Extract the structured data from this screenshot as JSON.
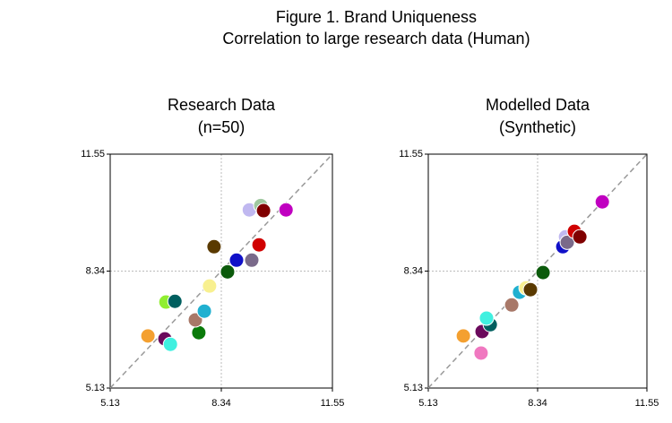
{
  "title": "Figure 1. Brand Uniqueness",
  "subtitle": "Correlation to large research data (Human)",
  "chart_data": [
    {
      "type": "scatter",
      "title": "Research Data",
      "subtitle": "(n=50)",
      "xlim": [
        5.13,
        11.55
      ],
      "ylim": [
        5.13,
        11.55
      ],
      "xticks": [
        5.13,
        8.34,
        11.55
      ],
      "yticks": [
        5.13,
        8.34,
        11.55
      ],
      "grid": true,
      "x": [
        6.22,
        6.71,
        6.87,
        6.74,
        7.0,
        7.69,
        7.59,
        7.85,
        8.0,
        8.52,
        8.13,
        8.78,
        9.22,
        9.43,
        9.15,
        9.48,
        9.56,
        10.21
      ],
      "values": [
        6.56,
        6.48,
        6.33,
        7.49,
        7.51,
        6.65,
        7.0,
        7.24,
        7.93,
        8.32,
        9.01,
        8.64,
        8.64,
        9.06,
        10.02,
        10.14,
        10.0,
        10.02
      ],
      "colors": [
        "#f4a030",
        "#6b0a5c",
        "#40f0e0",
        "#90ee30",
        "#005f5f",
        "#0a7a0a",
        "#a87868",
        "#20b0d0",
        "#f8f090",
        "#0b5a0b",
        "#5a3a00",
        "#1010c8",
        "#7a6a8a",
        "#d00000",
        "#c0b8f0",
        "#a0c8a0",
        "#800000",
        "#c000c0"
      ]
    },
    {
      "type": "scatter",
      "title": "Modelled Data",
      "subtitle": "(Synthetic)",
      "xlim": [
        5.13,
        11.55
      ],
      "ylim": [
        5.13,
        11.55
      ],
      "xticks": [
        5.13,
        8.34,
        11.55
      ],
      "yticks": [
        5.13,
        8.34,
        11.55
      ],
      "grid": true,
      "x": [
        6.16,
        6.68,
        6.71,
        6.95,
        6.84,
        7.58,
        7.81,
        8.0,
        8.13,
        8.5,
        9.08,
        9.16,
        9.21,
        9.42,
        9.58,
        10.24
      ],
      "values": [
        6.56,
        6.09,
        6.68,
        6.87,
        7.05,
        7.41,
        7.76,
        7.88,
        7.83,
        8.3,
        9.01,
        9.28,
        9.13,
        9.43,
        9.28,
        10.24
      ],
      "colors": [
        "#f4a030",
        "#f078c0",
        "#6b0a5c",
        "#005f5f",
        "#40f0e0",
        "#a87868",
        "#20b0d0",
        "#f8f090",
        "#5a3a00",
        "#0b5a0b",
        "#1010c8",
        "#c0b8f0",
        "#7a6a8a",
        "#d00000",
        "#800000",
        "#c000c0"
      ]
    }
  ]
}
